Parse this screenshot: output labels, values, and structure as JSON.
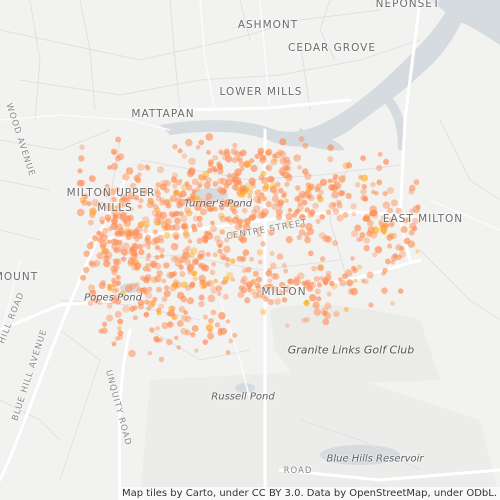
{
  "labels": {
    "ashmont": "ASHMONT",
    "neponset": "NEPONSET",
    "cedar_grove": "CEDAR GROVE",
    "lower_mills": "LOWER MILLS",
    "mattapan": "MATTAPAN",
    "milton_upper_mills": "MILTON UPPER MILLS",
    "east_milton": "EAST MILTON",
    "milton": "MILTON",
    "mount": "MOUNT",
    "wood_avenue": "WOOD AVENUE",
    "hill_road": "HILL ROAD",
    "blue_hill_avenue": "BLUE HILL AVENUE",
    "unquity_road": "UNQUITY ROAD",
    "centre_street": "CENTRE STREET",
    "road": "ROAD",
    "turners_pond": "Turner's Pond",
    "popes_pond": "Popes Pond",
    "russell_pond": "Russell Pond",
    "blue_hills_reservoir": "Blue Hills Reservoir",
    "granite_links": "Granite Links Golf Club"
  },
  "attribution": "Map tiles by Carto, under CC BY 3.0. Data by OpenStreetMap, under ODbL.",
  "colors": {
    "background": "#f2f2f0",
    "water": "#d6dbdf",
    "road_major": "#ffffff",
    "road_minor": "#e1e1e1",
    "park": "#e9eae7",
    "dot": "#ff8c54",
    "dot_dense": "#ffb020"
  },
  "icons": [
    "map-points-overlay"
  ]
}
